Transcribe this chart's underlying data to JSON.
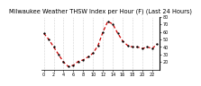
{
  "title": "Milwaukee Weather THSW Index per Hour (F) (Last 24 Hours)",
  "x_values": [
    0,
    1,
    2,
    3,
    4,
    5,
    6,
    7,
    8,
    9,
    10,
    11,
    12,
    13,
    14,
    15,
    16,
    17,
    18,
    19,
    20,
    21,
    22,
    23
  ],
  "y_values": [
    58,
    50,
    40,
    30,
    20,
    14,
    16,
    21,
    23,
    27,
    32,
    42,
    60,
    74,
    70,
    58,
    48,
    42,
    40,
    40,
    38,
    40,
    38,
    44
  ],
  "line_color": "#cc0000",
  "marker_color": "#000000",
  "bg_color": "#ffffff",
  "grid_color": "#888888",
  "title_color": "#000000",
  "ylim": [
    10,
    80
  ],
  "ytick_vals": [
    20,
    30,
    40,
    50,
    60,
    70,
    80
  ],
  "xtick_vals": [
    0,
    2,
    4,
    6,
    8,
    10,
    12,
    14,
    16,
    18,
    20,
    22
  ],
  "title_fontsize": 4.8,
  "tick_fontsize": 3.5
}
